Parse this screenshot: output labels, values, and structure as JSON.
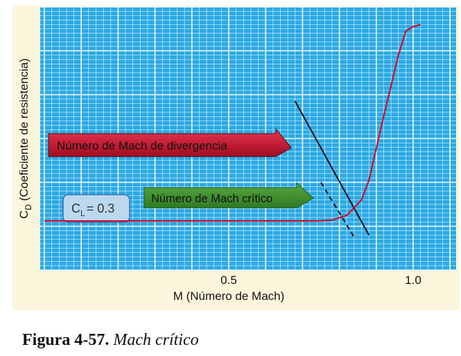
{
  "caption": {
    "label": "Figura 4-57.",
    "text": "Mach crítico"
  },
  "chart_data": {
    "type": "line",
    "xlabel": "M (Número de Mach)",
    "ylabel_main": "C",
    "ylabel_sub": "D",
    "ylabel_rest": " (Coeficiente de resistencia)",
    "x_ticks": [
      {
        "value": 0.5,
        "label": "0.5"
      },
      {
        "value": 1.0,
        "label": "1.0"
      }
    ],
    "xlim": [
      0,
      1.1
    ],
    "ylim": [
      0,
      6
    ],
    "grid": true,
    "series": [
      {
        "color": "#c8102e",
        "points": [
          [
            0,
            1.12
          ],
          [
            0.5,
            1.12
          ],
          [
            0.74,
            1.12
          ],
          [
            0.78,
            1.14
          ],
          [
            0.82,
            1.25
          ],
          [
            0.86,
            1.6
          ],
          [
            0.88,
            2.05
          ],
          [
            0.92,
            3.5
          ],
          [
            0.96,
            4.9
          ],
          [
            0.98,
            5.45
          ],
          [
            1.0,
            5.55
          ],
          [
            1.02,
            5.6
          ]
        ]
      }
    ],
    "lines": [
      {
        "kind": "solid",
        "color": "#111111",
        "from": [
          0.68,
          3.85
        ],
        "to": [
          0.88,
          0.8
        ]
      },
      {
        "kind": "dashed",
        "color": "#111111",
        "from": [
          0.75,
          2.0
        ],
        "to": [
          0.84,
          0.75
        ]
      }
    ],
    "annotations": {
      "divergence": {
        "text": "Número de Mach de divergencia",
        "fill": "#c8102e"
      },
      "critical": {
        "text": "Número de Mach crítico",
        "fill": "#3d8a2e"
      },
      "cl": {
        "main": "C",
        "sub": "L",
        "rest": "= 0.3",
        "fill": "#bcd8ee",
        "stroke": "#3a6fb0"
      }
    },
    "colors": {
      "plot_bg": "#2aa9e5",
      "grid": "#ffffff",
      "panel_bg": "#fbf6dc"
    }
  }
}
